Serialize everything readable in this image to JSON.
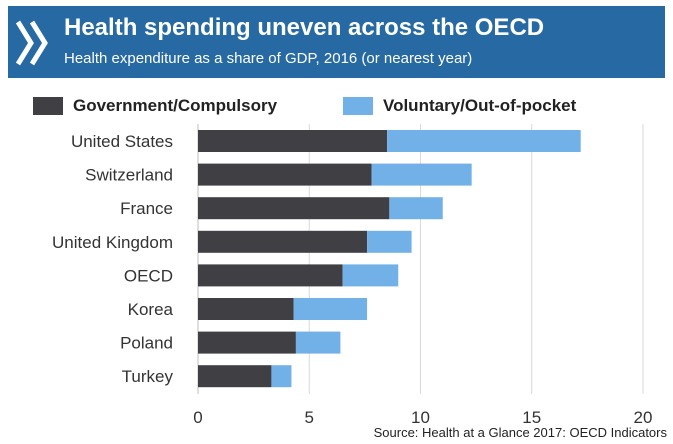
{
  "header": {
    "title": "Health spending uneven across the OECD",
    "subtitle": "Health expenditure as a share of GDP, 2016 (or nearest year)"
  },
  "source": "Source: Health at a Glance 2017: OECD Indicators",
  "colors": {
    "header_bg": "#2669a3",
    "government": "#3f3f44",
    "voluntary": "#72b0e8",
    "grid": "#d9d9d9"
  },
  "chart_data": {
    "type": "bar",
    "orientation": "horizontal",
    "stacked": true,
    "categories": [
      "United States",
      "Switzerland",
      "France",
      "United Kingdom",
      "OECD",
      "Korea",
      "Poland",
      "Turkey"
    ],
    "series": [
      {
        "name": "Government/Compulsory",
        "values": [
          8.5,
          7.8,
          8.6,
          7.6,
          6.5,
          4.3,
          4.4,
          3.3
        ]
      },
      {
        "name": "Voluntary/Out-of-pocket",
        "values": [
          8.7,
          4.5,
          2.4,
          2.0,
          2.5,
          3.3,
          2.0,
          0.9
        ]
      }
    ],
    "xlim": [
      0,
      20
    ],
    "xticks": [
      0,
      5,
      10,
      15,
      20
    ],
    "grid": true,
    "legend_position": "top"
  }
}
